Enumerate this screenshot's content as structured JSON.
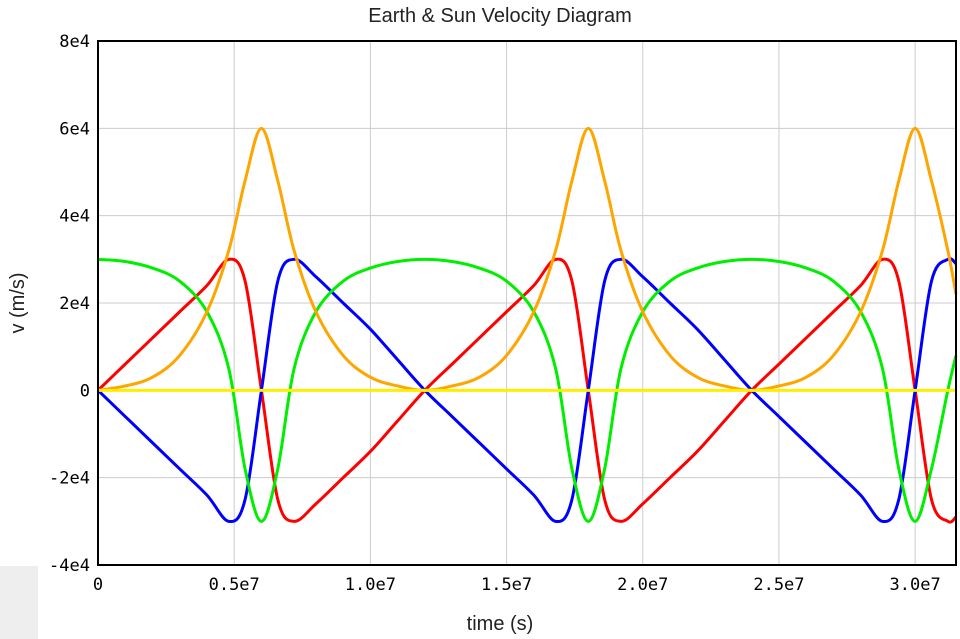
{
  "chart_data": {
    "type": "line",
    "title": "Earth & Sun Velocity Diagram",
    "xlabel": "time (s)",
    "ylabel": "v (m/s)",
    "xlim": [
      0,
      31500000
    ],
    "ylim": [
      -40000,
      80000
    ],
    "x_ticks": [
      0,
      5000000,
      10000000,
      15000000,
      20000000,
      25000000,
      30000000
    ],
    "x_tick_labels": [
      "0",
      "0.5e7",
      "1.0e7",
      "1.5e7",
      "2.0e7",
      "2.5e7",
      "3.0e7"
    ],
    "y_ticks": [
      -40000,
      -20000,
      0,
      20000,
      40000,
      60000,
      80000
    ],
    "y_tick_labels": [
      "-4e4",
      "-2e4",
      "0",
      "2e4",
      "4e4",
      "6e4",
      "8e4"
    ],
    "grid": true,
    "legend": "none",
    "series": [
      {
        "color": "#ff0000",
        "x": [
          0,
          1000000,
          2000000,
          3000000,
          4000000,
          4800000,
          5400000,
          6000000,
          6600000,
          7200000,
          8000000,
          9000000,
          10000000,
          11000000,
          12000000,
          13000000,
          14000000,
          15000000,
          16000000,
          16800000,
          17400000,
          18000000,
          18600000,
          19200000,
          20000000,
          21000000,
          22000000,
          23000000,
          24000000,
          25000000,
          26000000,
          27000000,
          28000000,
          28800000,
          29400000,
          30000000,
          30600000,
          31200000,
          31500000
        ],
        "y": [
          0,
          6000,
          12000,
          18000,
          24000,
          30000,
          25000,
          0,
          -25000,
          -30000,
          -26000,
          -20000,
          -14000,
          -7000,
          0,
          6000,
          12000,
          18000,
          24000,
          30000,
          25000,
          0,
          -25000,
          -30000,
          -26000,
          -20000,
          -14000,
          -7000,
          0,
          6000,
          12000,
          18000,
          24000,
          30000,
          25000,
          0,
          -25000,
          -30000,
          -29000
        ]
      },
      {
        "color": "#0000ff",
        "x": [
          0,
          1000000,
          2000000,
          3000000,
          4000000,
          4800000,
          5400000,
          6000000,
          6600000,
          7200000,
          8000000,
          9000000,
          10000000,
          11000000,
          12000000,
          13000000,
          14000000,
          15000000,
          16000000,
          16800000,
          17400000,
          18000000,
          18600000,
          19200000,
          20000000,
          21000000,
          22000000,
          23000000,
          24000000,
          25000000,
          26000000,
          27000000,
          28000000,
          28800000,
          29400000,
          30000000,
          30600000,
          31200000,
          31500000
        ],
        "y": [
          0,
          -6000,
          -12000,
          -18000,
          -24000,
          -30000,
          -25000,
          0,
          25000,
          30000,
          26000,
          20000,
          14000,
          7000,
          0,
          -6000,
          -12000,
          -18000,
          -24000,
          -30000,
          -25000,
          0,
          25000,
          30000,
          26000,
          20000,
          14000,
          7000,
          0,
          -6000,
          -12000,
          -18000,
          -24000,
          -30000,
          -25000,
          0,
          25000,
          30000,
          29000
        ]
      },
      {
        "color": "#00ee00",
        "x": [
          0,
          1000000,
          2000000,
          3000000,
          4000000,
          4800000,
          5400000,
          6000000,
          6600000,
          7200000,
          8000000,
          9000000,
          10000000,
          11000000,
          12000000,
          13000000,
          14000000,
          15000000,
          16000000,
          16800000,
          17400000,
          18000000,
          18600000,
          19200000,
          20000000,
          21000000,
          22000000,
          23000000,
          24000000,
          25000000,
          26000000,
          27000000,
          28000000,
          28800000,
          29400000,
          30000000,
          30600000,
          31200000,
          31500000
        ],
        "y": [
          30000,
          29500,
          28000,
          25000,
          18000,
          5000,
          -18000,
          -30000,
          -18000,
          5000,
          18000,
          25000,
          28000,
          29500,
          30000,
          29500,
          28000,
          25000,
          18000,
          5000,
          -18000,
          -30000,
          -18000,
          5000,
          18000,
          25000,
          28000,
          29500,
          30000,
          29500,
          28000,
          25000,
          18000,
          5000,
          -18000,
          -30000,
          -18000,
          0,
          8000
        ]
      },
      {
        "color": "#ffa500",
        "x": [
          0,
          1000000,
          2000000,
          3000000,
          4000000,
          4800000,
          5400000,
          6000000,
          6600000,
          7200000,
          8000000,
          9000000,
          10000000,
          11000000,
          12000000,
          13000000,
          14000000,
          15000000,
          16000000,
          16800000,
          17400000,
          18000000,
          18600000,
          19200000,
          20000000,
          21000000,
          22000000,
          23000000,
          24000000,
          25000000,
          26000000,
          27000000,
          28000000,
          28800000,
          29400000,
          30000000,
          30600000,
          31200000,
          31500000
        ],
        "y": [
          0,
          1000,
          3000,
          8000,
          18000,
          32000,
          48000,
          60000,
          48000,
          32000,
          18000,
          8000,
          3000,
          1000,
          0,
          1000,
          3000,
          8000,
          18000,
          32000,
          48000,
          60000,
          48000,
          32000,
          18000,
          8000,
          3000,
          1000,
          0,
          1000,
          3000,
          8000,
          18000,
          32000,
          48000,
          60000,
          48000,
          32000,
          22000
        ]
      },
      {
        "color": "#ffee00",
        "x": [
          0,
          31500000
        ],
        "y": [
          0,
          0
        ]
      }
    ]
  }
}
